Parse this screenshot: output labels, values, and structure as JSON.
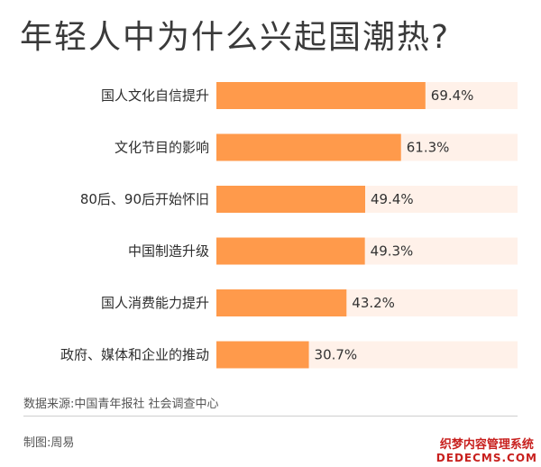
{
  "chart_data": {
    "type": "bar",
    "orientation": "horizontal",
    "title": "年轻人中为什么兴起国潮热?",
    "categories": [
      "国人文化自信提升",
      "文化节目的影响",
      "80后、90后开始怀旧",
      "中国制造升级",
      "国人消费能力提升",
      "政府、媒体和企业的推动"
    ],
    "values": [
      69.4,
      61.3,
      49.4,
      49.3,
      43.2,
      30.7
    ],
    "value_labels": [
      "69.4%",
      "61.3%",
      "49.4%",
      "49.3%",
      "43.2%",
      "30.7%"
    ],
    "xlim": [
      0,
      100
    ],
    "grid": false,
    "legend": "none"
  },
  "colors": {
    "bar": "#ff9a4b",
    "track": "#fff1e9"
  },
  "footer": {
    "source": "数据来源:中国青年报社 社会调查中心",
    "credit": "制图:周易"
  },
  "watermark": {
    "cn": "织梦内容管理系统",
    "en": "DEDECMS.COM"
  }
}
